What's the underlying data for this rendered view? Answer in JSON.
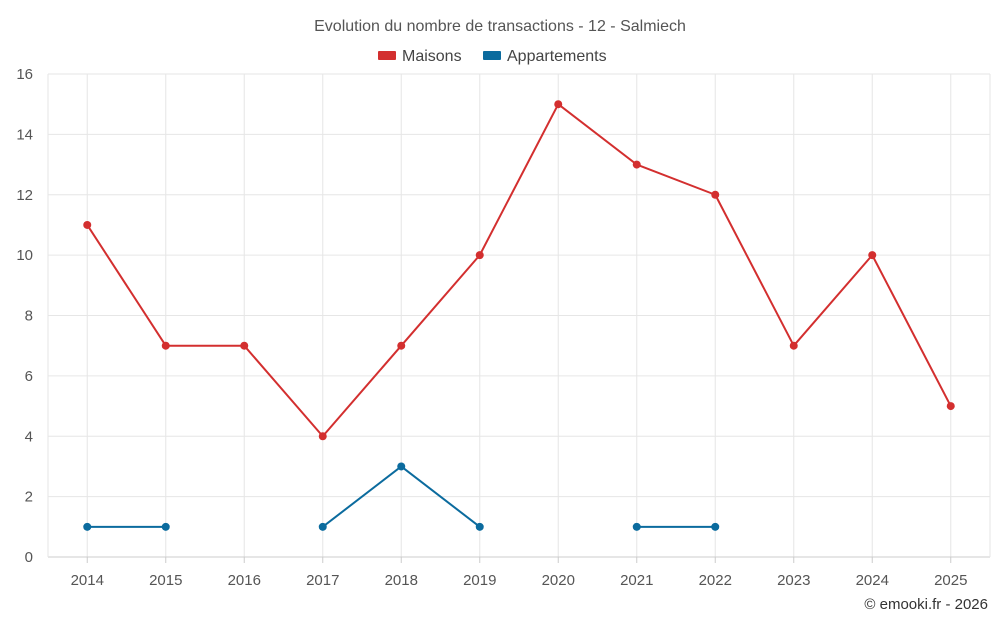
{
  "chart_data": {
    "type": "line",
    "title": "Evolution du nombre de transactions - 12 - Salmiech",
    "categories": [
      "2014",
      "2015",
      "2016",
      "2017",
      "2018",
      "2019",
      "2020",
      "2021",
      "2022",
      "2023",
      "2024",
      "2025"
    ],
    "ylim": [
      0,
      16
    ],
    "yticks": [
      0,
      2,
      4,
      6,
      8,
      10,
      12,
      14,
      16
    ],
    "grid": true,
    "legend_position": "top-center",
    "series": [
      {
        "name": "Maisons",
        "color": "#d32f2f",
        "values": [
          11,
          7,
          7,
          4,
          7,
          10,
          15,
          13,
          12,
          7,
          10,
          5
        ]
      },
      {
        "name": "Appartements",
        "color": "#0b6b9e",
        "values": [
          1,
          1,
          null,
          1,
          3,
          1,
          null,
          1,
          1,
          null,
          null,
          null
        ]
      }
    ]
  },
  "credit": "© emooki.fr - 2026"
}
